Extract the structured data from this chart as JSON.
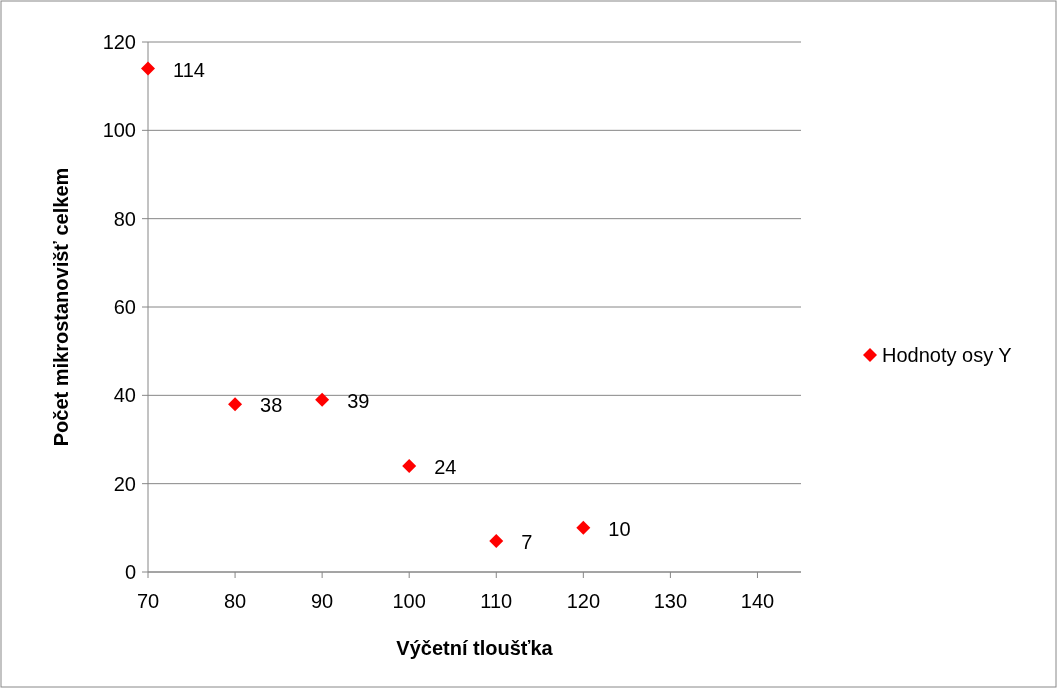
{
  "chart_data": {
    "type": "scatter",
    "xlabel": "Výčetní tloušťka",
    "ylabel": "Počet mikrostanovišť celkem",
    "x": [
      70,
      80,
      90,
      100,
      110,
      120
    ],
    "series": [
      {
        "name": "Hodnoty osy Y",
        "color": "#ff0000",
        "values": [
          114,
          38,
          39,
          24,
          7,
          10
        ]
      }
    ],
    "xlim": [
      70,
      145
    ],
    "xticks": [
      70,
      80,
      90,
      100,
      110,
      120,
      130,
      140
    ],
    "ylim": [
      0,
      120
    ],
    "yticks": [
      0,
      20,
      40,
      60,
      80,
      100,
      120
    ],
    "grid": "y",
    "legend": "right",
    "marker": "diamond",
    "data_labels": true
  }
}
